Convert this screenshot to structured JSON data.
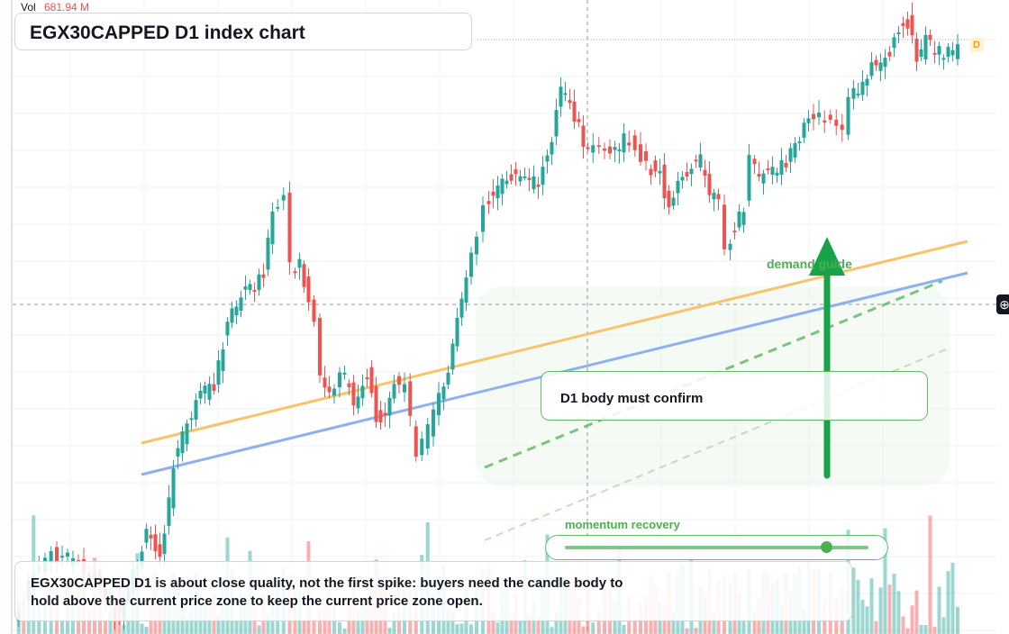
{
  "header": {
    "vol_label": "Vol",
    "vol_value": "681.94 M",
    "title": "EGX30CAPPED D1 index chart"
  },
  "annotations": {
    "demand_label": "demand guide",
    "note": "D1 body must confirm",
    "momentum_label": "momentum recovery",
    "footer": "EGX30CAPPED D1 is about close quality, not the first spike: buyers need the candle body to hold above the current price zone to keep the current price zone open.",
    "badge": "D"
  },
  "slider": {
    "value": 0.86
  },
  "icons": {
    "crosshair": "crosshair-plus-icon",
    "arrow": "up-arrow-icon"
  },
  "colors": {
    "up": "#26a69a",
    "down": "#ef5350",
    "accent": "#4caf50",
    "trend_orange": "#f7c36b",
    "trend_blue": "#8fb0f0"
  }
}
